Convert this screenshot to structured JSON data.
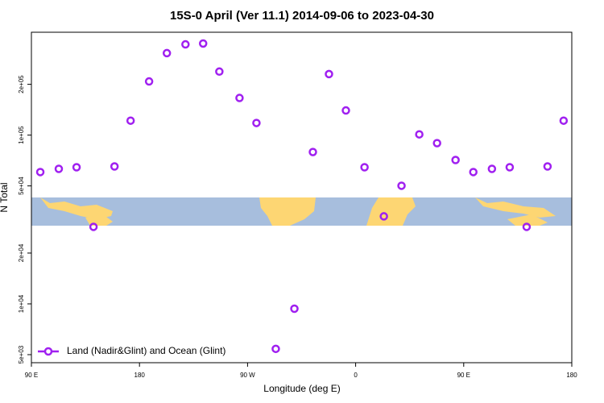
{
  "chart_data": {
    "type": "scatter",
    "title": "15S-0 April (Ver 11.1)   2014-09-06 to 2023-04-30",
    "x_label": "Longitude (deg E)",
    "y_label": "N Total",
    "log_y": true,
    "legend": "bottom-left",
    "xlim": [
      90,
      540
    ],
    "xticks": [
      {
        "value": 90,
        "label": "90 E"
      },
      180,
      {
        "value": 270,
        "label": "90 W"
      },
      {
        "value": 360,
        "label": "0"
      },
      {
        "value": 450,
        "label": "90 E"
      },
      {
        "value": 540,
        "label": "180"
      }
    ],
    "ylim": [
      4480,
      407000
    ],
    "yticks": [
      {
        "value": 5000,
        "label": "5e+03"
      },
      {
        "value": 10000,
        "label": "1e+04"
      },
      {
        "value": 20000,
        "label": "2e+04"
      },
      {
        "value": 50000,
        "label": "5e+04"
      },
      {
        "value": 100000,
        "label": "1e+05"
      },
      {
        "value": 200000,
        "label": "2e+05"
      }
    ],
    "series": [
      {
        "name": "Land (Nadir&Glint) and Ocean (Glint)",
        "color": "#a020f0",
        "x": [
          97.4,
          112.8,
          127.6,
          141.7,
          159.2,
          172.6,
          188,
          202.8,
          218.3,
          233,
          246.5,
          263.3,
          277.4,
          293.5,
          309,
          324.4,
          337.8,
          351.9,
          367.4,
          383.5,
          398.2,
          413,
          427.8,
          443.2,
          458,
          473.5,
          488.3,
          502.4,
          519.8,
          533.2
        ],
        "values": [
          60400,
          63100,
          64500,
          28600,
          65200,
          121800,
          208000,
          306000,
          345000,
          349000,
          238000,
          166000,
          118000,
          5410,
          9360,
          79400,
          230000,
          140000,
          64500,
          33000,
          50100,
          101000,
          89600,
          71200,
          60400,
          63100,
          64500,
          28600,
          65200,
          121800
        ]
      }
    ]
  }
}
